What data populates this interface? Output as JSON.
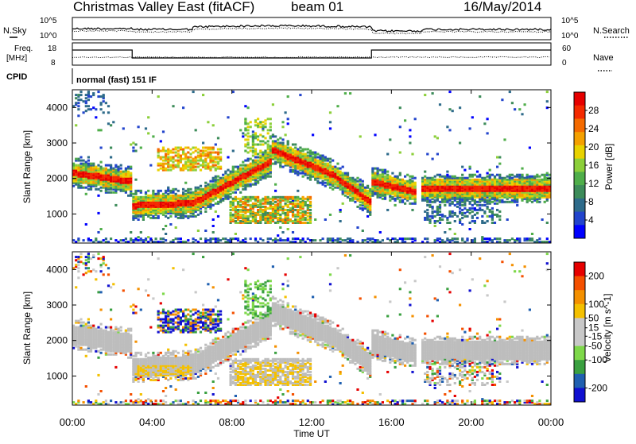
{
  "header": {
    "station_title": "Christmas Valley East (fitACF)",
    "beam_label": "beam 01",
    "date": "16/May/2014"
  },
  "top_panels": {
    "nsky_label": "N.Sky",
    "nsearch_label": "N.Search",
    "noise_ticks": [
      "10^5",
      "10^0"
    ],
    "freq_label": "Freq.",
    "freq_unit": "[MHz]",
    "freq_ticks": [
      "18",
      "8"
    ],
    "nave_label": "Nave",
    "nave_ticks": [
      "60",
      "0"
    ],
    "cpid_label": "CPID",
    "cpid_text": "normal (fast) 151 IF"
  },
  "colors": {
    "power_scale": [
      "#0000ff",
      "#2244cc",
      "#2e6b8a",
      "#3d8c5a",
      "#4fae4a",
      "#8ccf3a",
      "#e8d200",
      "#f4a000",
      "#f46a00",
      "#f42a00",
      "#e60000"
    ],
    "velocity_scale": [
      "#e60000",
      "#f45000",
      "#f49000",
      "#f4c000",
      "#c8c8c8",
      "#c8c8c8",
      "#7ed84a",
      "#3aa040",
      "#2060b0",
      "#1010d0"
    ],
    "ground_scatter": "#bdbdbd"
  },
  "chart_data": [
    {
      "type": "heatmap",
      "name": "power",
      "ylabel": "Slant Range [km]",
      "yticks": [
        1000,
        2000,
        3000,
        4000
      ],
      "ylim": [
        180,
        4500
      ],
      "colorbar_label": "Power [dB]",
      "colorbar_ticks": [
        4,
        8,
        12,
        16,
        20,
        24,
        28
      ],
      "colorbar_range": [
        0,
        32
      ],
      "echo_bands": [
        {
          "start_hr": 0.0,
          "end_hr": 3.0,
          "range_start": 2150,
          "range_end": 1900
        },
        {
          "start_hr": 3.0,
          "end_hr": 6.0,
          "range_start": 1230,
          "range_end": 1300
        },
        {
          "start_hr": 6.0,
          "end_hr": 10.0,
          "range_start": 1300,
          "range_end": 2500
        },
        {
          "start_hr": 10.0,
          "end_hr": 13.0,
          "range_start": 2800,
          "range_end": 2100
        },
        {
          "start_hr": 13.0,
          "end_hr": 15.0,
          "range_start": 2100,
          "range_end": 1300
        },
        {
          "start_hr": 15.0,
          "end_hr": 17.3,
          "range_start": 1900,
          "range_end": 1600
        },
        {
          "start_hr": 17.5,
          "end_hr": 24.0,
          "range_start": 1700,
          "range_end": 1700
        }
      ]
    },
    {
      "type": "heatmap",
      "name": "velocity",
      "ylabel": "Slant Range [km]",
      "yticks": [
        1000,
        2000,
        3000,
        4000
      ],
      "ylim": [
        180,
        4500
      ],
      "colorbar_label": "Velocity [m s^-1]",
      "colorbar_ticks": [
        200,
        100,
        50,
        15,
        -15,
        -50,
        -100,
        -200
      ],
      "colorbar_range": [
        -250,
        250
      ],
      "xlabel": "Time UT",
      "xticks": [
        "00:00",
        "04:00",
        "08:00",
        "12:00",
        "16:00",
        "20:00",
        "00:00"
      ],
      "xlim_hours": [
        0,
        24
      ]
    }
  ],
  "freq_trace": [
    {
      "start_hr": 0.0,
      "end_hr": 3.0,
      "mhz": 14.8
    },
    {
      "start_hr": 3.0,
      "end_hr": 15.0,
      "mhz": 11.2
    },
    {
      "start_hr": 15.0,
      "end_hr": 24.0,
      "mhz": 14.8
    }
  ]
}
